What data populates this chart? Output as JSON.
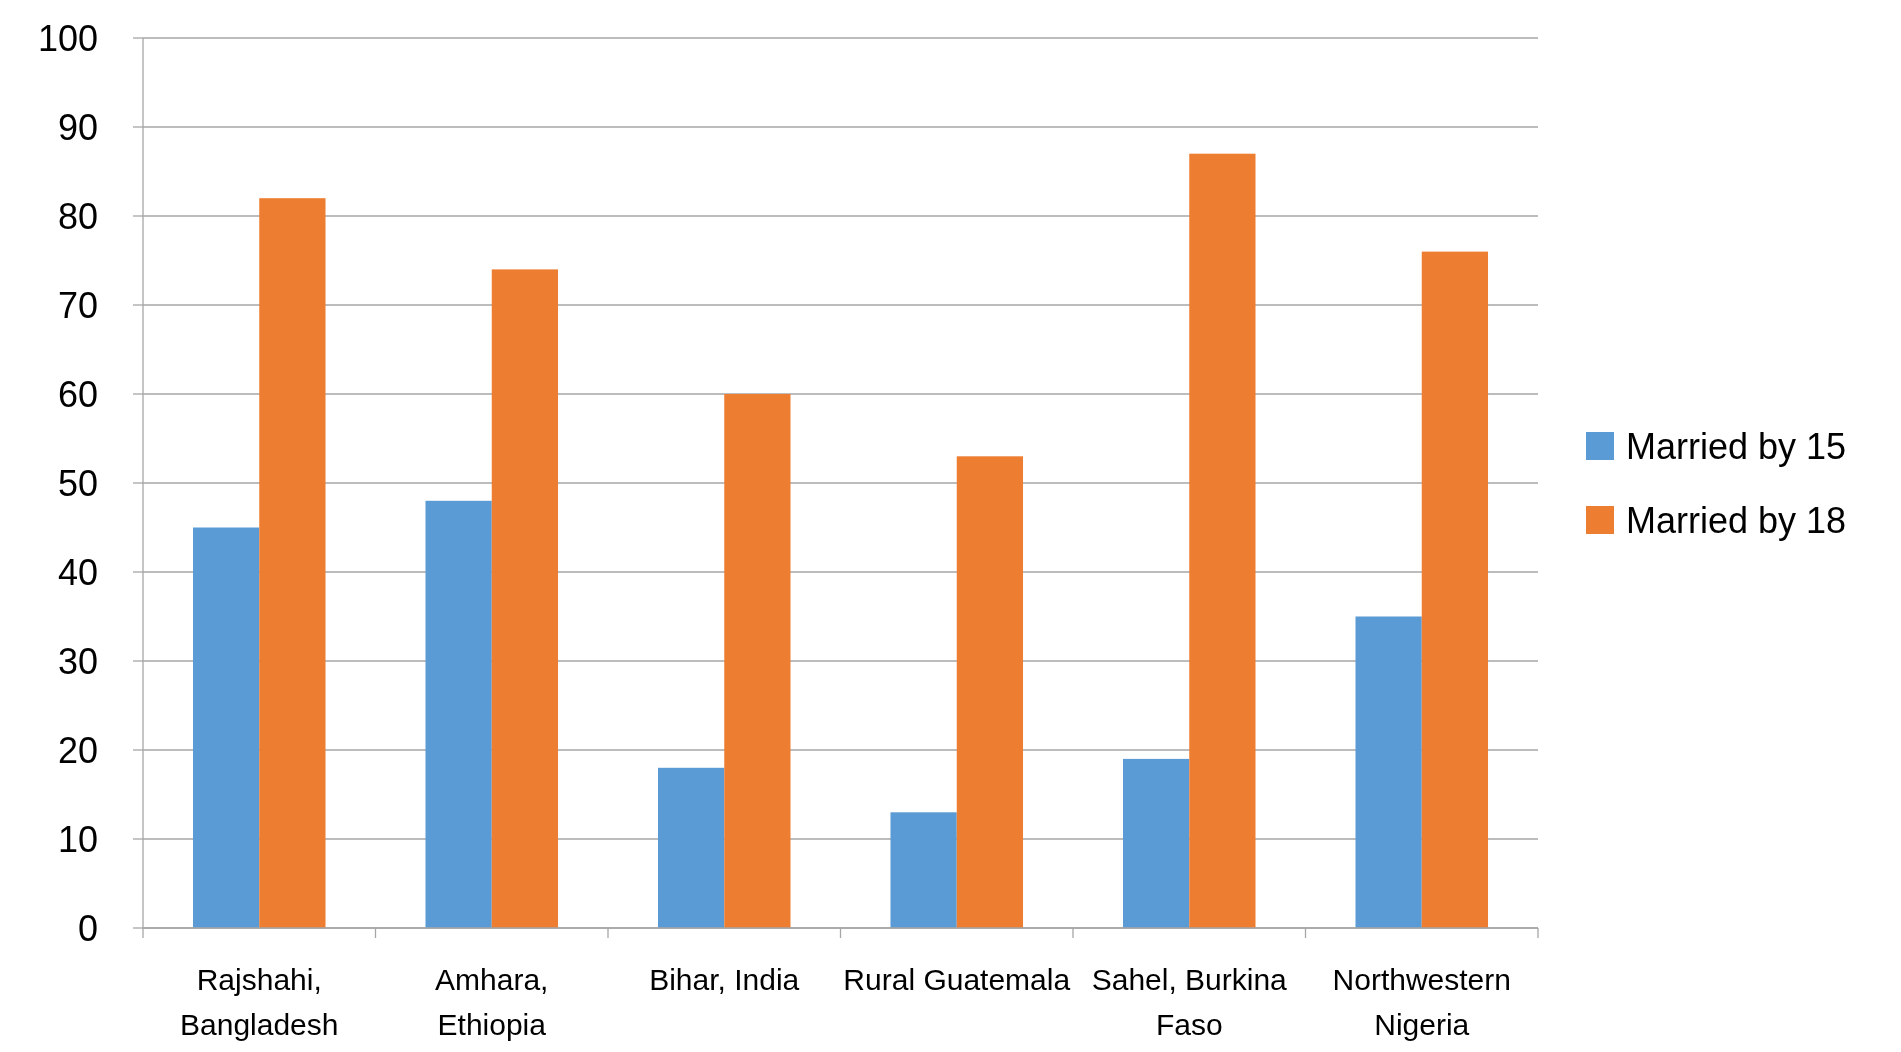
{
  "chart_data": {
    "type": "bar",
    "categories": [
      "Rajshahi, Bangladesh",
      "Amhara, Ethiopia",
      "Bihar, India",
      "Rural Guatemala",
      "Sahel, Burkina Faso",
      "Northwestern Nigeria"
    ],
    "series": [
      {
        "name": "Married by 15",
        "color": "#5b9bd5",
        "values": [
          45,
          48,
          18,
          13,
          19,
          35
        ]
      },
      {
        "name": "Married by 18",
        "color": "#ed7d31",
        "values": [
          82,
          74,
          60,
          53,
          87,
          76
        ]
      }
    ],
    "ylim": [
      0,
      100
    ],
    "yticks": [
      0,
      10,
      20,
      30,
      40,
      50,
      60,
      70,
      80,
      90,
      100
    ],
    "grid": "y",
    "legend": "right"
  }
}
